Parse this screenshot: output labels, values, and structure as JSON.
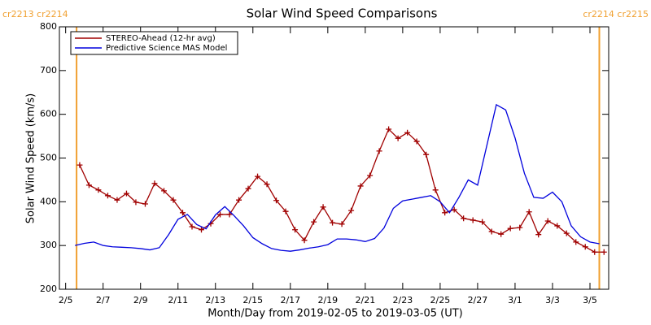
{
  "chart_data": {
    "type": "line",
    "title": "Solar Wind Speed Comparisons",
    "x_label": "Month/Day from 2019-02-05 to 2019-03-05 (UT)",
    "y_label": "Solar Wind Speed (km/s)",
    "xlim": [
      "2019-02-04T16:00",
      "2019-03-06T00:00"
    ],
    "ylim": [
      200,
      800
    ],
    "yticks": [
      200,
      300,
      400,
      500,
      600,
      700,
      800
    ],
    "xticks": [
      {
        "value": "2019-02-05",
        "label": "2/5"
      },
      {
        "value": "2019-02-07",
        "label": "2/7"
      },
      {
        "value": "2019-02-09",
        "label": "2/9"
      },
      {
        "value": "2019-02-11",
        "label": "2/11"
      },
      {
        "value": "2019-02-13",
        "label": "2/13"
      },
      {
        "value": "2019-02-15",
        "label": "2/15"
      },
      {
        "value": "2019-02-17",
        "label": "2/17"
      },
      {
        "value": "2019-02-19",
        "label": "2/19"
      },
      {
        "value": "2019-02-21",
        "label": "2/21"
      },
      {
        "value": "2019-02-23",
        "label": "2/23"
      },
      {
        "value": "2019-02-25",
        "label": "2/25"
      },
      {
        "value": "2019-02-27",
        "label": "2/27"
      },
      {
        "value": "2019-03-01",
        "label": "3/1"
      },
      {
        "value": "2019-03-03",
        "label": "3/3"
      },
      {
        "value": "2019-03-05",
        "label": "3/5"
      }
    ],
    "legend": "upper left",
    "markers": [
      {
        "x": "2019-02-05T14:00",
        "label": "cr2213 cr2214",
        "color": "#f0a030"
      },
      {
        "x": "2019-03-05T12:00",
        "label": "cr2214 cr2215",
        "color": "#f0a030"
      }
    ],
    "series": [
      {
        "name": "STEREO-Ahead (12-hr avg)",
        "color": "#a00000",
        "marker": "+",
        "x": [
          "2019-02-05T18:00",
          "2019-02-06T06:00",
          "2019-02-06T18:00",
          "2019-02-07T06:00",
          "2019-02-07T18:00",
          "2019-02-08T06:00",
          "2019-02-08T18:00",
          "2019-02-09T06:00",
          "2019-02-09T18:00",
          "2019-02-10T06:00",
          "2019-02-10T18:00",
          "2019-02-11T06:00",
          "2019-02-11T18:00",
          "2019-02-12T06:00",
          "2019-02-12T18:00",
          "2019-02-13T06:00",
          "2019-02-13T18:00",
          "2019-02-14T06:00",
          "2019-02-14T18:00",
          "2019-02-15T06:00",
          "2019-02-15T18:00",
          "2019-02-16T06:00",
          "2019-02-16T18:00",
          "2019-02-17T06:00",
          "2019-02-17T18:00",
          "2019-02-18T06:00",
          "2019-02-18T18:00",
          "2019-02-19T06:00",
          "2019-02-19T18:00",
          "2019-02-20T06:00",
          "2019-02-20T18:00",
          "2019-02-21T06:00",
          "2019-02-21T18:00",
          "2019-02-22T06:00",
          "2019-02-22T18:00",
          "2019-02-23T06:00",
          "2019-02-23T18:00",
          "2019-02-24T06:00",
          "2019-02-24T18:00",
          "2019-02-25T06:00",
          "2019-02-25T18:00",
          "2019-02-26T06:00",
          "2019-02-26T18:00",
          "2019-02-27T06:00",
          "2019-02-27T18:00",
          "2019-02-28T06:00",
          "2019-02-28T18:00",
          "2019-03-01T06:00",
          "2019-03-01T18:00",
          "2019-03-02T06:00",
          "2019-03-02T18:00",
          "2019-03-03T06:00",
          "2019-03-03T18:00",
          "2019-03-04T06:00",
          "2019-03-04T18:00",
          "2019-03-05T06:00",
          "2019-03-05T18:00"
        ],
        "values": [
          484,
          438,
          427,
          414,
          404,
          419,
          399,
          395,
          442,
          425,
          404,
          375,
          343,
          336,
          350,
          371,
          371,
          404,
          430,
          458,
          440,
          403,
          378,
          336,
          312,
          354,
          388,
          352,
          349,
          380,
          436,
          460,
          516,
          566,
          545,
          558,
          538,
          508,
          427,
          375,
          382,
          362,
          358,
          354,
          332,
          326,
          339,
          341,
          377,
          325,
          356,
          345,
          328,
          308,
          297,
          285,
          285
        ]
      },
      {
        "name": "Predictive Science MAS Model",
        "color": "#0000dd",
        "x": [
          "2019-02-05T12:00",
          "2019-02-06T00:00",
          "2019-02-06T12:00",
          "2019-02-07T00:00",
          "2019-02-07T12:00",
          "2019-02-08T00:00",
          "2019-02-08T12:00",
          "2019-02-09T00:00",
          "2019-02-09T12:00",
          "2019-02-10T00:00",
          "2019-02-10T12:00",
          "2019-02-11T00:00",
          "2019-02-11T12:00",
          "2019-02-12T00:00",
          "2019-02-12T12:00",
          "2019-02-13T00:00",
          "2019-02-13T12:00",
          "2019-02-14T00:00",
          "2019-02-14T12:00",
          "2019-02-15T00:00",
          "2019-02-15T12:00",
          "2019-02-16T00:00",
          "2019-02-16T12:00",
          "2019-02-17T00:00",
          "2019-02-17T12:00",
          "2019-02-18T00:00",
          "2019-02-18T12:00",
          "2019-02-19T00:00",
          "2019-02-19T12:00",
          "2019-02-20T00:00",
          "2019-02-20T12:00",
          "2019-02-21T00:00",
          "2019-02-21T12:00",
          "2019-02-22T00:00",
          "2019-02-22T12:00",
          "2019-02-23T00:00",
          "2019-02-23T12:00",
          "2019-02-24T00:00",
          "2019-02-24T12:00",
          "2019-02-25T00:00",
          "2019-02-25T12:00",
          "2019-02-26T00:00",
          "2019-02-26T12:00",
          "2019-02-27T00:00",
          "2019-02-27T12:00",
          "2019-02-28T00:00",
          "2019-02-28T12:00",
          "2019-03-01T00:00",
          "2019-03-01T12:00",
          "2019-03-02T00:00",
          "2019-03-02T12:00",
          "2019-03-03T00:00",
          "2019-03-03T12:00",
          "2019-03-04T00:00",
          "2019-03-04T12:00",
          "2019-03-05T00:00",
          "2019-03-05T12:00"
        ],
        "values": [
          300,
          305,
          308,
          300,
          297,
          296,
          295,
          293,
          290,
          295,
          325,
          360,
          371,
          348,
          338,
          370,
          389,
          368,
          345,
          318,
          304,
          293,
          289,
          287,
          290,
          294,
          297,
          302,
          315,
          315,
          313,
          309,
          316,
          340,
          385,
          402,
          406,
          410,
          414,
          400,
          375,
          410,
          450,
          438,
          530,
          622,
          610,
          546,
          465,
          410,
          408,
          422,
          400,
          345,
          320,
          308,
          304
        ]
      }
    ]
  }
}
